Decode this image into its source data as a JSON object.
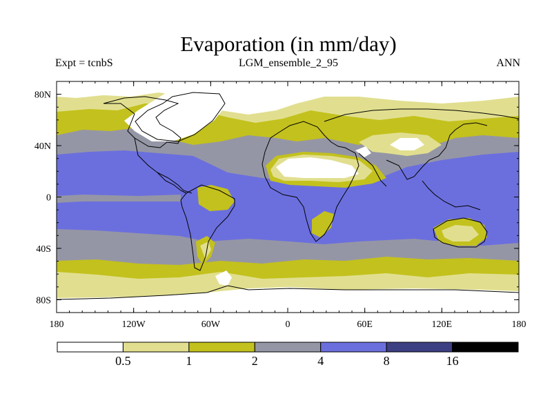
{
  "title": "Evaporation (in mm/day)",
  "header": {
    "left": "Expt = tcnbS",
    "center": "LGM_ensemble_2_95",
    "right": "ANN"
  },
  "axes": {
    "lon_ticks": [
      {
        "value": -180,
        "label": "180"
      },
      {
        "value": -120,
        "label": "120W"
      },
      {
        "value": -60,
        "label": "60W"
      },
      {
        "value": 0,
        "label": "0"
      },
      {
        "value": 60,
        "label": "60E"
      },
      {
        "value": 120,
        "label": "120E"
      },
      {
        "value": 180,
        "label": "180"
      }
    ],
    "lat_ticks": [
      {
        "value": 80,
        "label": "80N"
      },
      {
        "value": 40,
        "label": "40N"
      },
      {
        "value": 0,
        "label": "0"
      },
      {
        "value": -40,
        "label": "40S"
      },
      {
        "value": -80,
        "label": "80S"
      }
    ],
    "lon_range": [
      -180,
      180
    ],
    "lat_range": [
      -90,
      90
    ]
  },
  "colorbar": {
    "bins": [
      {
        "color": "#ffffff"
      },
      {
        "color": "#e1df8f"
      },
      {
        "color": "#c3c11d"
      },
      {
        "color": "#9596a5"
      },
      {
        "color": "#6b6fdd"
      },
      {
        "color": "#3d3f83"
      },
      {
        "color": "#000000"
      }
    ],
    "labels": [
      "0.5",
      "1",
      "2",
      "4",
      "8",
      "16"
    ]
  },
  "legend_colors": {
    "white": "#ffffff",
    "pale": "#e1df8f",
    "olive": "#c3c11d",
    "gray": "#9596a5",
    "blue": "#6b6fdd"
  }
}
